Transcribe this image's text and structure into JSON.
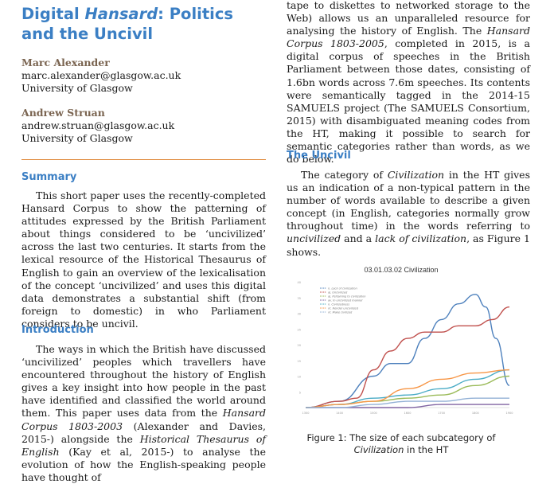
{
  "title": {
    "prefix": "Digital ",
    "emph": "Hansard",
    "rest": ": Politics and the Uncivil"
  },
  "authors": [
    {
      "name": "Marc Alexander",
      "email": "marc.alexander@glasgow.ac.uk",
      "affiliation": "University of Glasgow"
    },
    {
      "name": "Andrew Struan",
      "email": "andrew.struan@glasgow.ac.uk",
      "affiliation": "University of Glasgow"
    }
  ],
  "summary": {
    "heading": "Summary",
    "text": "This short paper uses the recently-completed Hansard Corpus to show the patterning of attitudes expressed by the British Parliament about things considered to be ‘uncivilized’ across the last two centuries. It starts from the lexical resource of the Historical Thesaurus of English to gain an overview of the lexicalisation of the concept ‘uncivilized’ and uses this digital data demonstrates a substantial shift (from foreign to domestic) in who Parliament considers to be uncivil."
  },
  "introduction": {
    "heading": "Introduction",
    "p1": "The ways in which the British have discussed ‘uncivilized’ peoples which travellers have encountered throughout the history of English gives a key insight into how people in the past have identified and classified the world around them. This paper uses data from the ",
    "p1_em1": "Hansard Corpus 1803-2003",
    "p1_mid": " (Alexander and Davies, 2015-) alongside the ",
    "p1_em2": "Historical Thesaurus of English",
    "p1_end": " (Kay et al, 2015-) to analyse the evolution of how the English-speaking people have thought of"
  },
  "continued": {
    "a": "tape to diskettes to networked storage to the Web) allows us an unparalleled resource for analysing the history of English. The ",
    "em": "Hansard Corpus 1803-2005",
    "b": ", completed in 2015, is a digital corpus of speeches in the British Parliament between those dates, consisting of 1.6bn words across 7.6m speeches. Its contents were semantically tagged in the 2014-15 SAMUELS project (The SAMUELS Consortium, 2015) with disambiguated meaning codes from the HT, making it possible to search for semantic categories rather than words, as we do below."
  },
  "uncivil": {
    "heading": "The Uncivil",
    "a": "The category of ",
    "em1": "Civilization",
    "b": " in the HT gives us an indication of a non-typical pattern in the number of words available to describe a given concept (in English, categories normally grow throughout time) in the words referring to ",
    "em2": "uncivilized",
    "c": " and a ",
    "em3": "lack of civilization",
    "d": ", as Figure 1 shows."
  },
  "figure": {
    "caption_a": "Figure 1: The size of each subcategory of ",
    "caption_em": "Civilization",
    "caption_b": " in the HT"
  },
  "chart_data": {
    "type": "line",
    "title": "03.01.03.02 Civilization",
    "x": [
      1300,
      1400,
      1500,
      1600,
      1700,
      1800,
      1900
    ],
    "xlim": [
      1300,
      1900
    ],
    "ylim": [
      0,
      40
    ],
    "yticks": [
      5,
      10,
      15,
      20,
      25,
      30,
      35,
      40
    ],
    "legend_position": "top-left",
    "series": [
      {
        "name": "n. Lack of civilization",
        "color": "#4e81bd",
        "points": [
          [
            1300,
            0
          ],
          [
            1400,
            2
          ],
          [
            1500,
            10
          ],
          [
            1550,
            14
          ],
          [
            1600,
            14
          ],
          [
            1650,
            22
          ],
          [
            1700,
            28
          ],
          [
            1750,
            33
          ],
          [
            1800,
            36
          ],
          [
            1830,
            32
          ],
          [
            1860,
            22
          ],
          [
            1900,
            7
          ]
        ]
      },
      {
        "name": "aj. Uncivilized",
        "color": "#c0504d",
        "points": [
          [
            1300,
            0
          ],
          [
            1400,
            2
          ],
          [
            1450,
            3
          ],
          [
            1500,
            12
          ],
          [
            1550,
            18
          ],
          [
            1600,
            22
          ],
          [
            1650,
            24
          ],
          [
            1700,
            24
          ],
          [
            1750,
            26
          ],
          [
            1800,
            26
          ],
          [
            1850,
            28
          ],
          [
            1900,
            32
          ]
        ]
      },
      {
        "name": "aj. Pertaining to civilization",
        "color": "#9bbb59",
        "points": [
          [
            1300,
            0
          ],
          [
            1400,
            1
          ],
          [
            1500,
            2
          ],
          [
            1600,
            3
          ],
          [
            1700,
            4
          ],
          [
            1800,
            7
          ],
          [
            1900,
            10
          ]
        ]
      },
      {
        "name": "av. In uncivilized manner",
        "color": "#8064a2",
        "points": [
          [
            1300,
            0
          ],
          [
            1400,
            0
          ],
          [
            1500,
            0
          ],
          [
            1600,
            0
          ],
          [
            1700,
            1
          ],
          [
            1800,
            1
          ],
          [
            1900,
            1
          ]
        ]
      },
      {
        "name": "n. Civilizedness",
        "color": "#4bacc6",
        "points": [
          [
            1300,
            0
          ],
          [
            1400,
            1
          ],
          [
            1500,
            3
          ],
          [
            1600,
            4
          ],
          [
            1700,
            6
          ],
          [
            1800,
            9
          ],
          [
            1900,
            12
          ]
        ]
      },
      {
        "name": "vt. Render uncivilized",
        "color": "#f79646",
        "points": [
          [
            1300,
            0
          ],
          [
            1400,
            1
          ],
          [
            1500,
            2
          ],
          [
            1600,
            6
          ],
          [
            1700,
            9
          ],
          [
            1800,
            11
          ],
          [
            1900,
            12
          ]
        ]
      },
      {
        "name": "vt. Make civilized",
        "color": "#93b1d6",
        "points": [
          [
            1300,
            0
          ],
          [
            1400,
            0
          ],
          [
            1500,
            1
          ],
          [
            1600,
            2
          ],
          [
            1700,
            2
          ],
          [
            1800,
            3
          ],
          [
            1900,
            3
          ]
        ]
      }
    ]
  }
}
